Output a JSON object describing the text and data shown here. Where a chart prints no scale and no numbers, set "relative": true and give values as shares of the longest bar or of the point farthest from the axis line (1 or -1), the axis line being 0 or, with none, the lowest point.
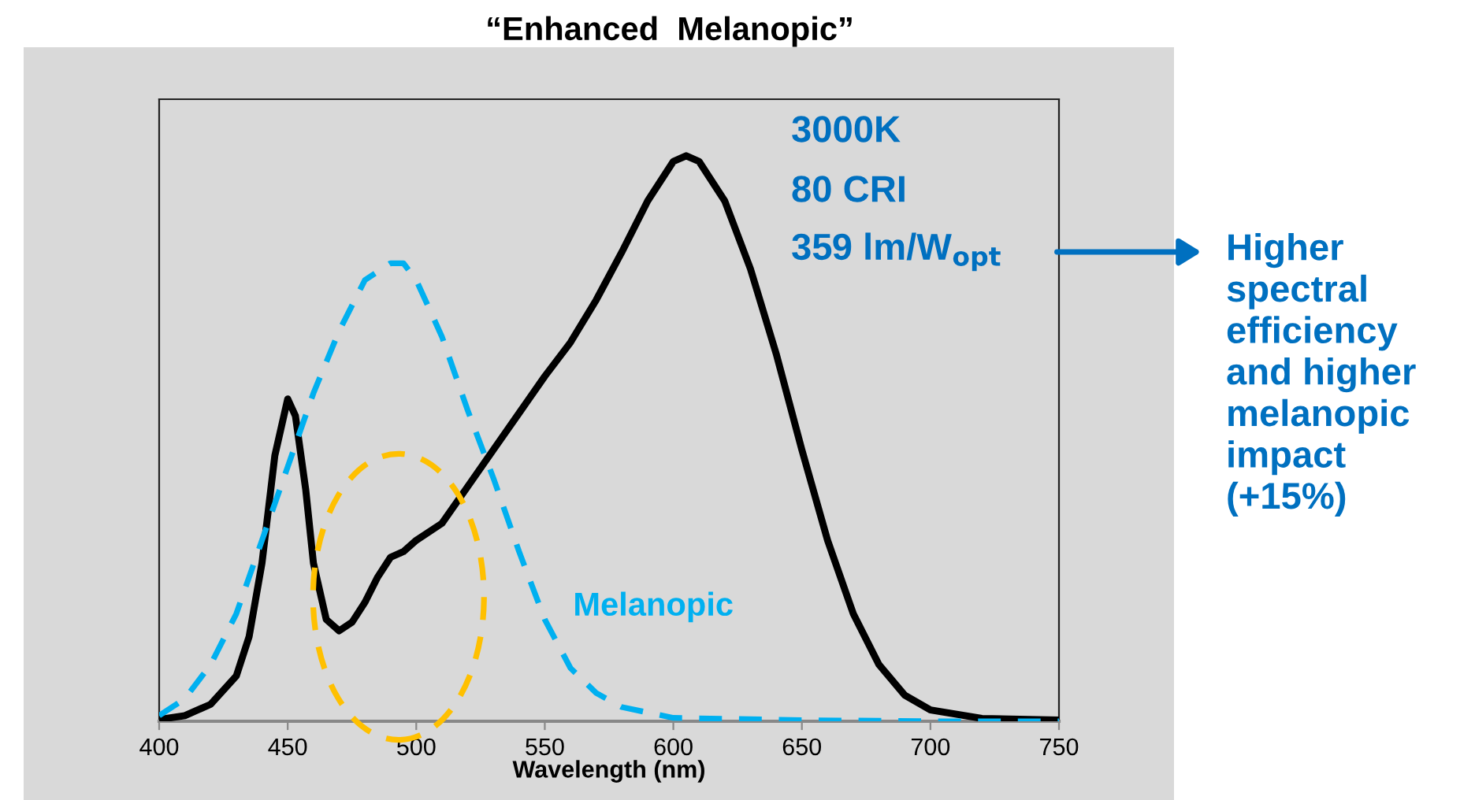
{
  "chart_data": {
    "type": "line",
    "title": "“Enhanced  Melanopic”",
    "xlabel": "Wavelength (nm)",
    "annotations": [
      "3000K",
      "80 CRI",
      "359 lm/W$_{opt}$",
      "Higher spectral efficiency and higher melanopic impact (+15%)"
    ],
    "relative": true,
    "xlim": [
      400,
      750
    ],
    "xticks": [
      400,
      450,
      500,
      550,
      600,
      650,
      700,
      750
    ],
    "grid": false,
    "tick_labels": "x",
    "series": [
      {
        "color": "#000000",
        "line_style": "solid",
        "x": [
          400,
          410,
          420,
          430,
          435,
          440,
          445,
          450,
          453,
          457,
          460,
          465,
          470,
          475,
          480,
          485,
          490,
          495,
          500,
          510,
          520,
          530,
          540,
          550,
          560,
          570,
          580,
          590,
          600,
          605,
          610,
          620,
          630,
          640,
          650,
          660,
          670,
          680,
          690,
          700,
          720,
          750
        ],
        "values": [
          0.003,
          0.01,
          0.03,
          0.08,
          0.15,
          0.28,
          0.47,
          0.57,
          0.54,
          0.41,
          0.28,
          0.18,
          0.16,
          0.175,
          0.21,
          0.255,
          0.29,
          0.3,
          0.32,
          0.35,
          0.415,
          0.48,
          0.545,
          0.61,
          0.67,
          0.745,
          0.83,
          0.92,
          0.99,
          1.0,
          0.99,
          0.92,
          0.8,
          0.65,
          0.48,
          0.32,
          0.19,
          0.1,
          0.046,
          0.02,
          0.005,
          0.002
        ]
      },
      {
        "name": "Melanopic",
        "color": "#00b0f0",
        "line_style": "dashed",
        "x": [
          400,
          410,
          420,
          430,
          440,
          450,
          460,
          470,
          480,
          490,
          495,
          500,
          510,
          520,
          530,
          540,
          550,
          560,
          570,
          580,
          600,
          650,
          700,
          750
        ],
        "values": [
          0.01,
          0.04,
          0.1,
          0.19,
          0.32,
          0.45,
          0.58,
          0.69,
          0.78,
          0.81,
          0.81,
          0.78,
          0.68,
          0.55,
          0.43,
          0.3,
          0.18,
          0.094,
          0.05,
          0.025,
          0.006,
          0.002,
          0,
          0
        ]
      }
    ]
  }
}
